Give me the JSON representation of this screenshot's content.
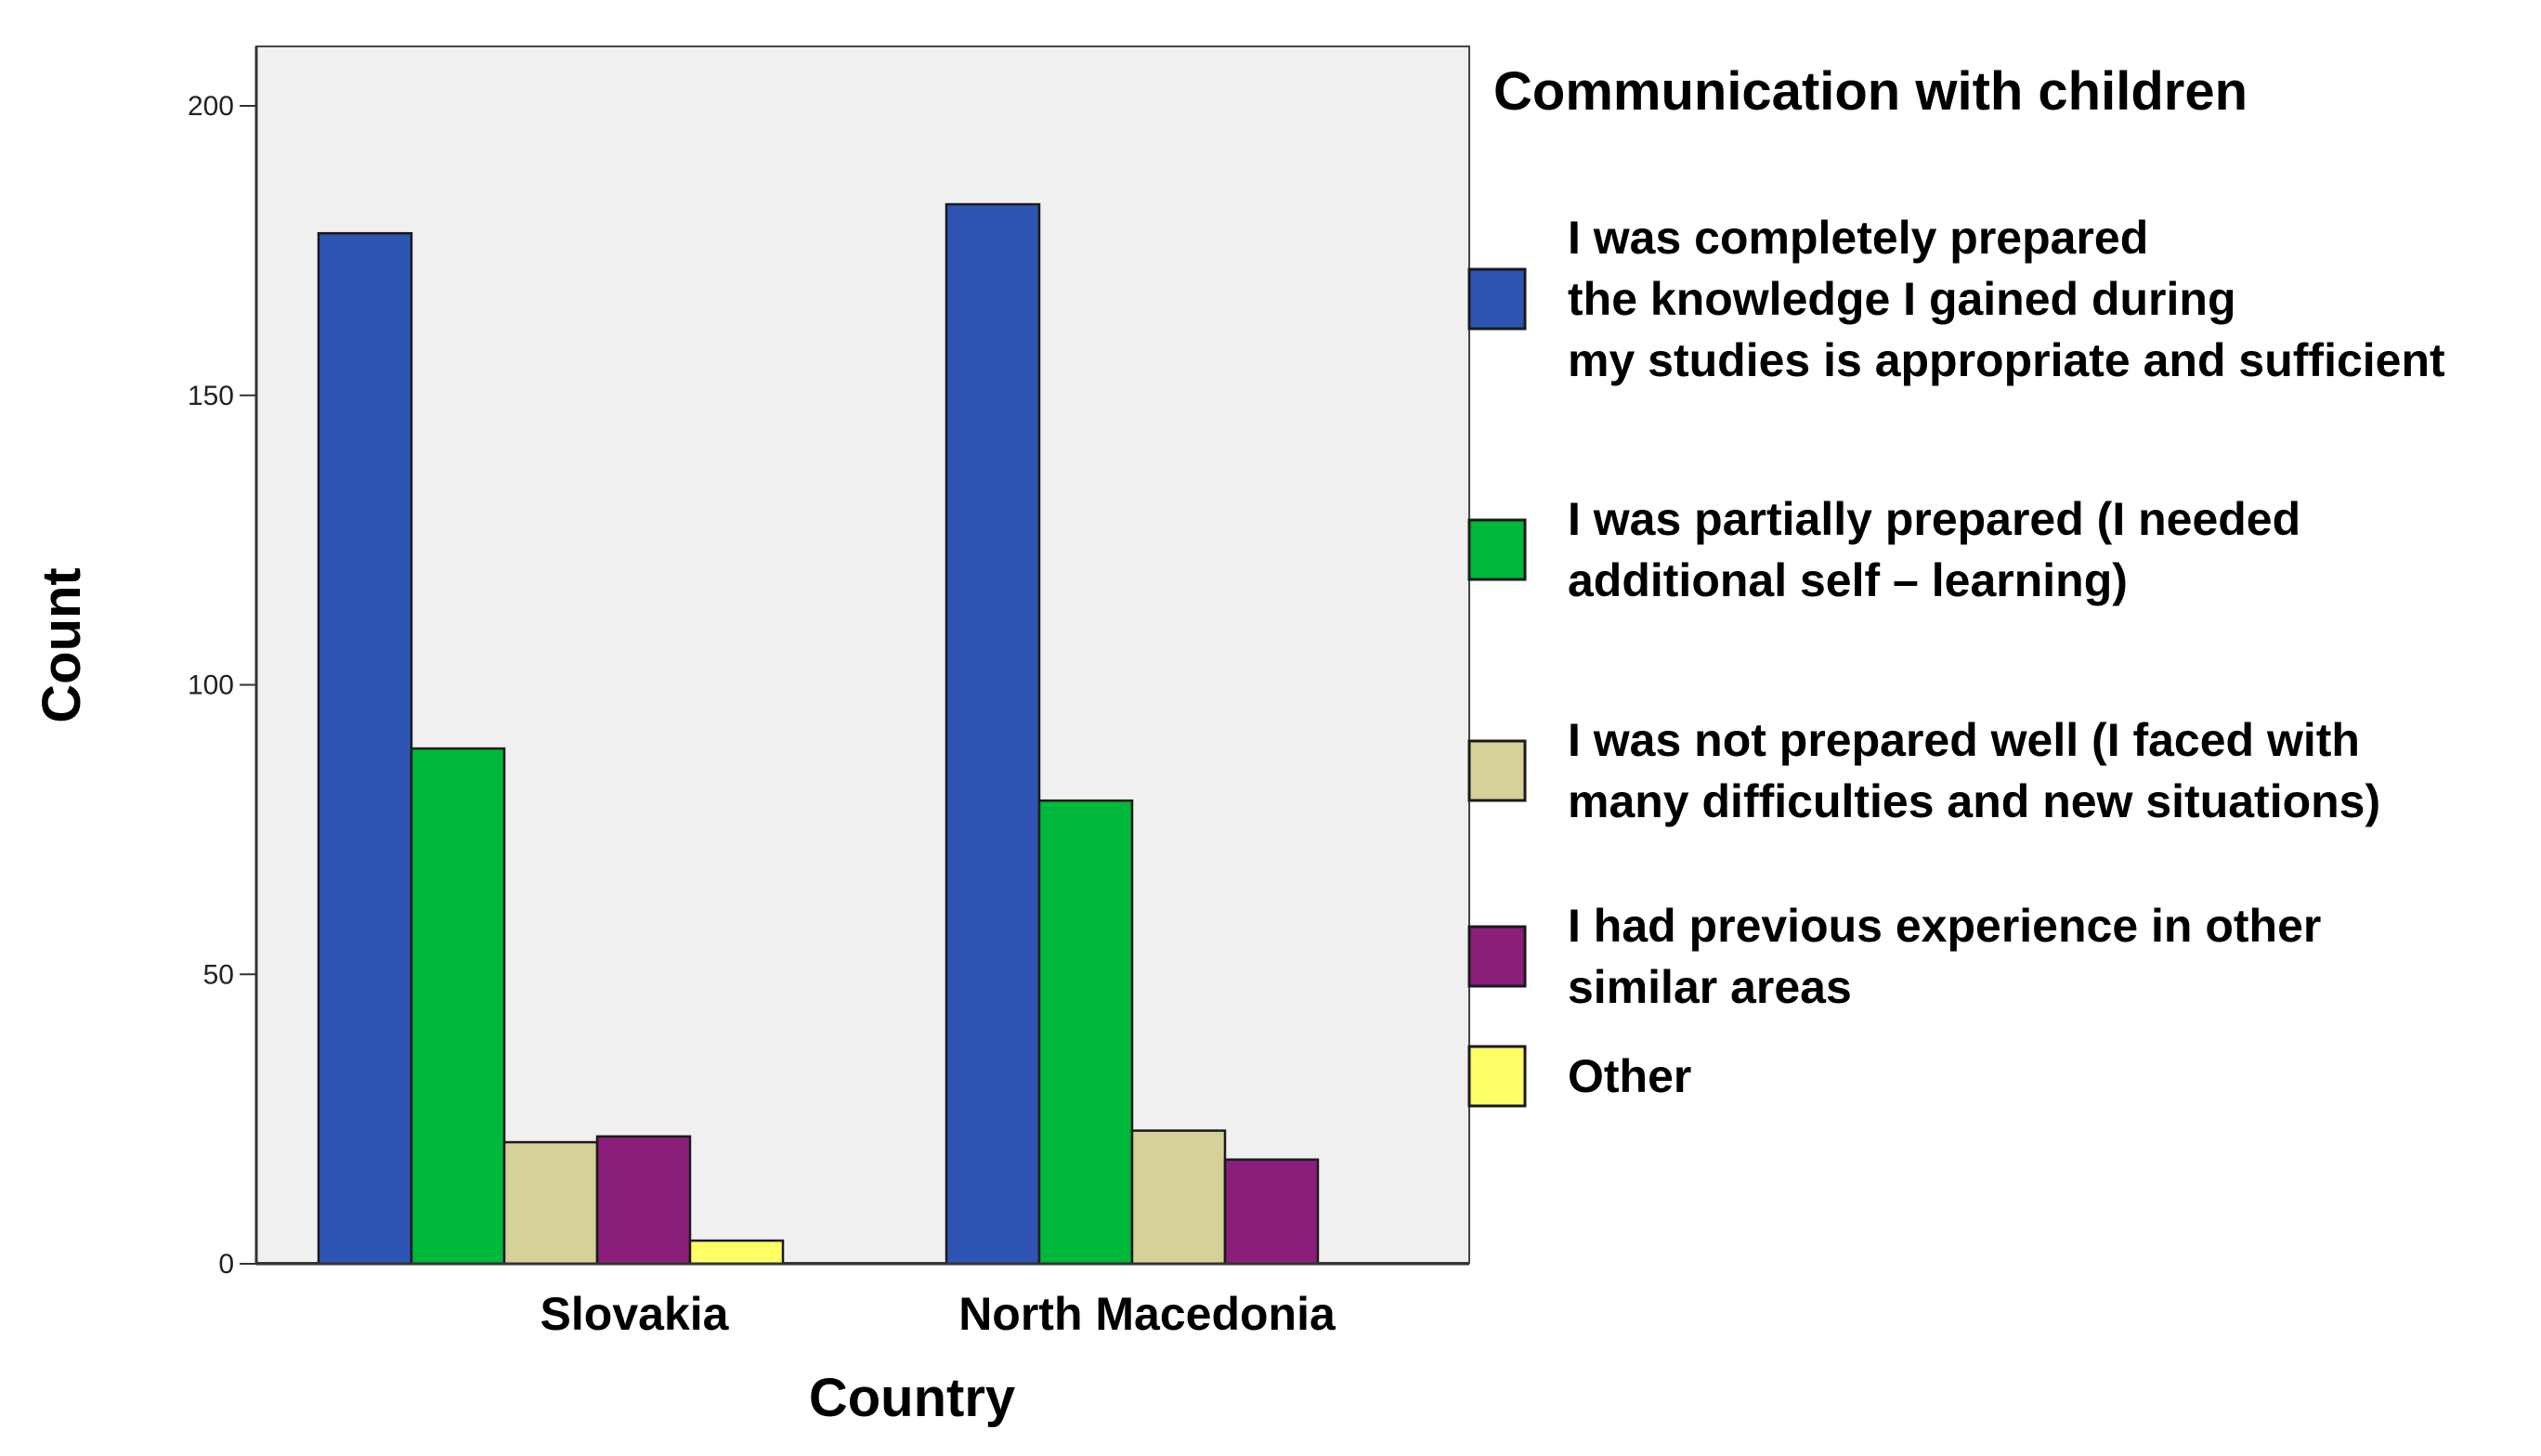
{
  "chart_data": {
    "type": "bar",
    "categories": [
      "Slovakia",
      "North Macedonia"
    ],
    "series": [
      {
        "name": "I was completely prepared the knowledge I gained during my studies is appropriate and sufficient",
        "legend_lines": [
          "I was completely prepared",
          "the knowledge I gained during",
          "my studies is appropriate and sufficient"
        ],
        "color": "#2E55B4",
        "values": [
          178,
          183
        ]
      },
      {
        "name": "I was partially prepared (I needed additional self – learning)",
        "legend_lines": [
          "I was partially prepared (I needed",
          "additional self  – learning)"
        ],
        "color": "#00B83A",
        "values": [
          89,
          80
        ]
      },
      {
        "name": "I was not prepared well (I faced with many difficulties and new situations)",
        "legend_lines": [
          "I was not prepared well (I faced with",
          "many difficulties and new situations)"
        ],
        "color": "#D6D099",
        "values": [
          21,
          23
        ]
      },
      {
        "name": "I had previous experience in other similar areas",
        "legend_lines": [
          "I had previous experience in other",
          "similar areas"
        ],
        "color": "#8B1E7A",
        "values": [
          22,
          18
        ]
      },
      {
        "name": "Other",
        "legend_lines": [
          "Other"
        ],
        "color": "#FFFF66",
        "values": [
          4,
          0
        ]
      }
    ],
    "xlabel": "Country",
    "ylabel": "Count",
    "legend_title": "Communication with children",
    "ylim": [
      0,
      200
    ],
    "yticks": [
      0,
      50,
      100,
      150,
      200
    ],
    "plot_background": "#F0F0F0",
    "legend_position": "right",
    "grid": false
  }
}
